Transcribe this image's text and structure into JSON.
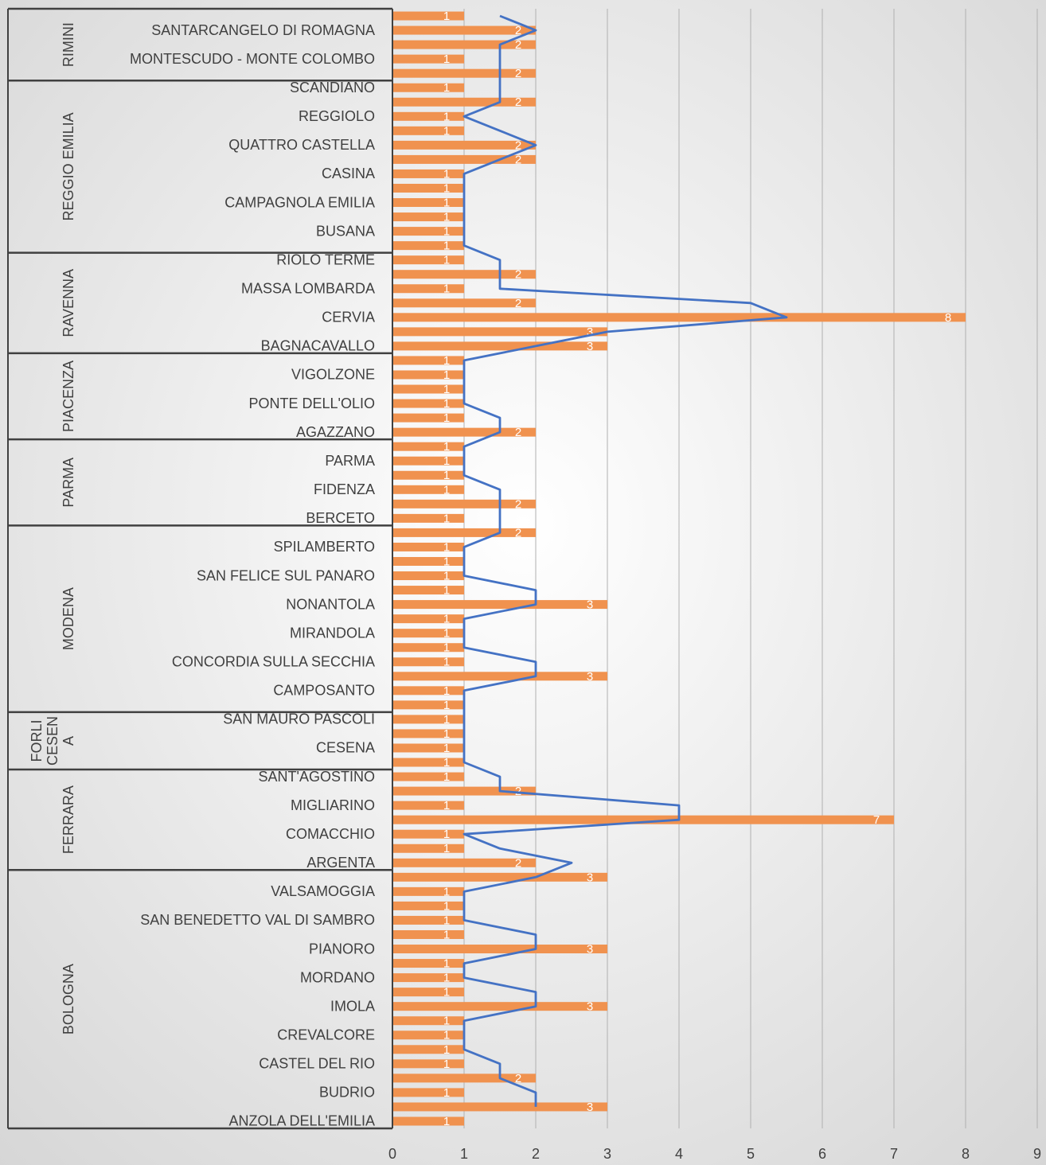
{
  "chart_data": {
    "type": "bar",
    "orientation": "horizontal",
    "bar_color": "#f0924f",
    "line_color": "#4472c4",
    "xlim": [
      0,
      9
    ],
    "xticks": [
      0,
      1,
      2,
      3,
      4,
      5,
      6,
      7,
      8,
      9
    ],
    "grid": true,
    "groups": [
      {
        "name": "RIMINI",
        "categories": [
          null,
          "SANTARCANGELO DI ROMAGNA",
          null,
          "MONTESCUDO - MONTE COLOMBO",
          null
        ],
        "values": [
          1,
          2,
          2,
          1,
          2
        ],
        "trend": [
          1.5,
          2,
          1.5,
          1.5,
          1.5
        ]
      },
      {
        "name": "REGGIO EMILIA",
        "categories": [
          "SCANDIANO",
          null,
          "REGGIOLO",
          null,
          "QUATTRO CASTELLA",
          null,
          "CASINA",
          null,
          "CAMPAGNOLA EMILIA",
          null,
          "BUSANA",
          null
        ],
        "values": [
          1,
          2,
          1,
          1,
          2,
          2,
          1,
          1,
          1,
          1,
          1,
          1
        ],
        "trend": [
          1.5,
          1.5,
          1,
          1.5,
          2,
          1.5,
          1,
          1,
          1,
          1,
          1,
          1
        ]
      },
      {
        "name": "RAVENNA",
        "categories": [
          "RIOLO TERME",
          null,
          "MASSA LOMBARDA",
          null,
          "CERVIA",
          null,
          "BAGNACAVALLO"
        ],
        "values": [
          1,
          2,
          1,
          2,
          8,
          3,
          3
        ],
        "trend": [
          1.5,
          1.5,
          1.5,
          5,
          5.5,
          3,
          2
        ]
      },
      {
        "name": "PIACENZA",
        "categories": [
          null,
          "VIGOLZONE",
          null,
          "PONTE DELL'OLIO",
          null,
          "AGAZZANO"
        ],
        "values": [
          1,
          1,
          1,
          1,
          1,
          2
        ],
        "trend": [
          1,
          1,
          1,
          1,
          1.5,
          1.5
        ]
      },
      {
        "name": "PARMA",
        "categories": [
          null,
          "PARMA",
          null,
          "FIDENZA",
          null,
          "BERCETO"
        ],
        "values": [
          1,
          1,
          1,
          1,
          2,
          1
        ],
        "trend": [
          1,
          1,
          1,
          1.5,
          1.5,
          1.5
        ]
      },
      {
        "name": "MODENA",
        "categories": [
          null,
          "SPILAMBERTO",
          null,
          "SAN FELICE SUL PANARO",
          null,
          "NONANTOLA",
          null,
          "MIRANDOLA",
          null,
          "CONCORDIA SULLA SECCHIA",
          null,
          "CAMPOSANTO",
          null
        ],
        "values": [
          2,
          1,
          1,
          1,
          1,
          3,
          1,
          1,
          1,
          1,
          3,
          1,
          1
        ],
        "trend": [
          1.5,
          1,
          1,
          1,
          2,
          2,
          1,
          1,
          1,
          2,
          2,
          1,
          1
        ]
      },
      {
        "name": "FORLI CESENA",
        "categories": [
          "SAN MAURO PASCOLI",
          null,
          "CESENA",
          null
        ],
        "values": [
          1,
          1,
          1,
          1
        ],
        "trend": [
          1,
          1,
          1,
          1
        ]
      },
      {
        "name": "FERRARA",
        "categories": [
          "SANT'AGOSTINO",
          null,
          "MIGLIARINO",
          null,
          "COMACCHIO",
          null,
          "ARGENTA"
        ],
        "values": [
          1,
          2,
          1,
          7,
          1,
          1,
          2
        ],
        "trend": [
          1.5,
          1.5,
          4,
          4,
          1,
          1.5,
          2.5
        ]
      },
      {
        "name": "BOLOGNA",
        "categories": [
          null,
          "VALSAMOGGIA",
          null,
          "SAN BENEDETTO VAL DI SAMBRO",
          null,
          "PIANORO",
          null,
          "MORDANO",
          null,
          "IMOLA",
          null,
          "CREVALCORE",
          null,
          "CASTEL DEL RIO",
          null,
          "BUDRIO",
          null,
          "ANZOLA DELL'EMILIA"
        ],
        "values": [
          3,
          1,
          1,
          1,
          1,
          3,
          1,
          1,
          1,
          3,
          1,
          1,
          1,
          1,
          2,
          1,
          3,
          1
        ],
        "trend": [
          2,
          1,
          1,
          1,
          2,
          2,
          1,
          1,
          2,
          2,
          1,
          1,
          1,
          1.5,
          1.5,
          2,
          2,
          null
        ]
      }
    ]
  }
}
